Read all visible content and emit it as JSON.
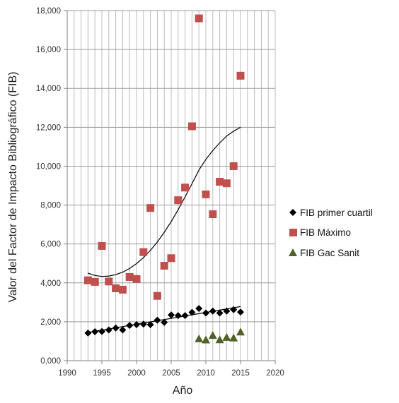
{
  "chart_data": {
    "type": "scatter",
    "title": "",
    "xlabel": "Año",
    "ylabel": "Valor del Factor de Impacto Bibliográfico (FIB)",
    "xlim": [
      1990,
      2020
    ],
    "ylim": [
      0,
      18000
    ],
    "x_ticks": [
      "1990",
      "1995",
      "2000",
      "2005",
      "2010",
      "2015",
      "2020"
    ],
    "y_ticks": [
      "0,000",
      "2,000",
      "4,000",
      "6,000",
      "8,000",
      "10,000",
      "12,000",
      "14,000",
      "16,000",
      "18,000"
    ],
    "grid": "vertical gridlines every year, horizontal at major ticks",
    "legend_position": "right",
    "series": [
      {
        "name": "FIB primer cuartil",
        "marker": "diamond",
        "color": "#000000",
        "points": [
          [
            1993,
            1420
          ],
          [
            1994,
            1490
          ],
          [
            1995,
            1500
          ],
          [
            1996,
            1580
          ],
          [
            1997,
            1680
          ],
          [
            1998,
            1580
          ],
          [
            1999,
            1810
          ],
          [
            2000,
            1850
          ],
          [
            2001,
            1880
          ],
          [
            2002,
            1850
          ],
          [
            2003,
            2080
          ],
          [
            2004,
            1970
          ],
          [
            2005,
            2350
          ],
          [
            2006,
            2320
          ],
          [
            2007,
            2320
          ],
          [
            2008,
            2480
          ],
          [
            2009,
            2680
          ],
          [
            2010,
            2450
          ],
          [
            2011,
            2550
          ],
          [
            2012,
            2450
          ],
          [
            2013,
            2550
          ],
          [
            2014,
            2620
          ],
          [
            2015,
            2500
          ]
        ],
        "trendline": {
          "type": "linear",
          "from": [
            1993,
            1450
          ],
          "to": [
            2015,
            2780
          ]
        }
      },
      {
        "name": "FIB Máximo",
        "marker": "square",
        "color": "#C0504D",
        "points": [
          [
            1993,
            4130
          ],
          [
            1994,
            4050
          ],
          [
            1995,
            5900
          ],
          [
            1996,
            4070
          ],
          [
            1997,
            3720
          ],
          [
            1998,
            3650
          ],
          [
            1999,
            4300
          ],
          [
            2000,
            4200
          ],
          [
            2001,
            5580
          ],
          [
            2002,
            7850
          ],
          [
            2003,
            3330
          ],
          [
            2004,
            4880
          ],
          [
            2005,
            5270
          ],
          [
            2006,
            8250
          ],
          [
            2007,
            8900
          ],
          [
            2008,
            12050
          ],
          [
            2009,
            17600
          ],
          [
            2010,
            8550
          ],
          [
            2011,
            7530
          ],
          [
            2012,
            9200
          ],
          [
            2013,
            9120
          ],
          [
            2014,
            10000
          ],
          [
            2015,
            14650
          ]
        ],
        "trendline": {
          "type": "polynomial",
          "curve": [
            [
              1993,
              4500
            ],
            [
              1994,
              4380
            ],
            [
              1995,
              4330
            ],
            [
              1996,
              4350
            ],
            [
              1997,
              4420
            ],
            [
              1998,
              4550
            ],
            [
              1999,
              4740
            ],
            [
              2000,
              4990
            ],
            [
              2001,
              5300
            ],
            [
              2002,
              5670
            ],
            [
              2003,
              6100
            ],
            [
              2004,
              6600
            ],
            [
              2005,
              7150
            ],
            [
              2006,
              7760
            ],
            [
              2007,
              8420
            ],
            [
              2008,
              9100
            ],
            [
              2009,
              9800
            ],
            [
              2010,
              10350
            ],
            [
              2011,
              10800
            ],
            [
              2012,
              11200
            ],
            [
              2013,
              11550
            ],
            [
              2014,
              11800
            ],
            [
              2015,
              12000
            ]
          ]
        }
      },
      {
        "name": "FIB Gac Sanit",
        "marker": "triangle",
        "color": "#4F6228",
        "points": [
          [
            2009,
            1130
          ],
          [
            2010,
            1070
          ],
          [
            2011,
            1300
          ],
          [
            2012,
            1080
          ],
          [
            2013,
            1200
          ],
          [
            2014,
            1170
          ],
          [
            2015,
            1480
          ]
        ]
      }
    ]
  }
}
